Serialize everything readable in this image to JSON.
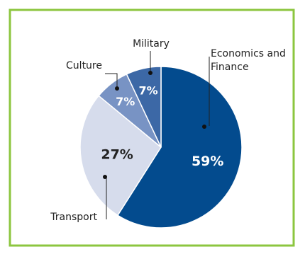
{
  "chart_data": {
    "type": "pie",
    "title": "",
    "slices": [
      {
        "label": "Economics and Finance",
        "label_lines": [
          "Economics and",
          "Finance"
        ],
        "value": 59,
        "value_label": "59%",
        "color": "#034b8e"
      },
      {
        "label": "Transport",
        "label_lines": [
          "Transport"
        ],
        "value": 27,
        "value_label": "27%",
        "color": "#d6dcec"
      },
      {
        "label": "Culture",
        "label_lines": [
          "Culture"
        ],
        "value": 7,
        "value_label": "7%",
        "color": "#7893c4"
      },
      {
        "label": "Military",
        "label_lines": [
          "Military"
        ],
        "value": 7,
        "value_label": "7%",
        "color": "#3c68a6"
      }
    ],
    "start": "12 o'clock",
    "direction": "clockwise"
  },
  "colors": {
    "border": "#8cc63f",
    "background": "#ffffff",
    "text": "#222222",
    "value_text_light": "#ffffff",
    "value_text_dark": "#222222"
  }
}
